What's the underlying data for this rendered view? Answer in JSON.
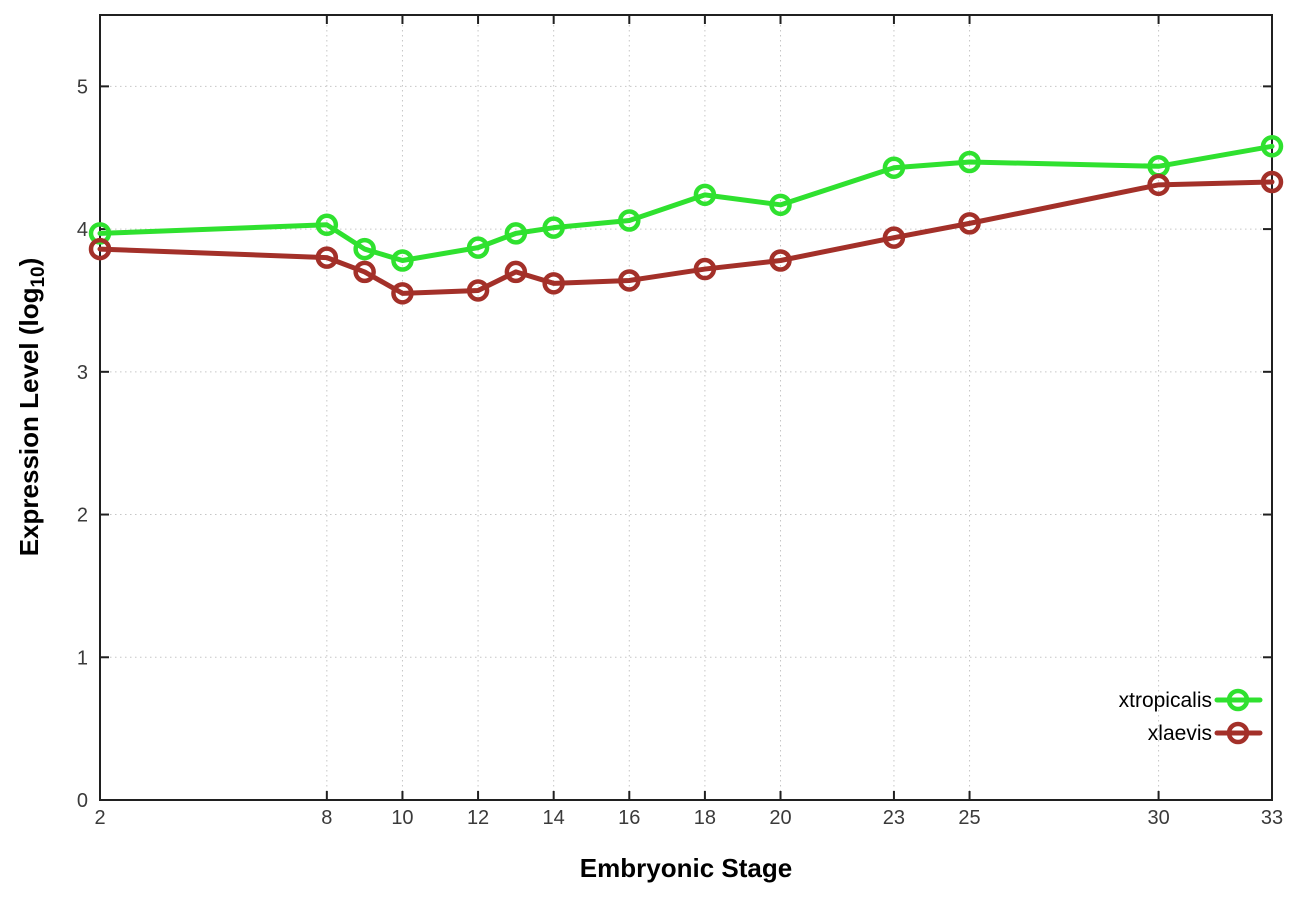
{
  "chart_data": {
    "type": "line",
    "title": "",
    "xlabel": "Embryonic Stage",
    "ylabel": "Expression Level (log10)",
    "ylabel_parts": {
      "pre": "Expression Level (log",
      "sub": "10",
      "post": ")"
    },
    "x": [
      2,
      8,
      9,
      10,
      12,
      13,
      14,
      16,
      18,
      20,
      23,
      25,
      30,
      33
    ],
    "series": [
      {
        "name": "xtropicalis",
        "color": "#2fe12f",
        "values": [
          3.97,
          4.03,
          3.86,
          3.78,
          3.87,
          3.97,
          4.01,
          4.06,
          4.24,
          4.17,
          4.43,
          4.47,
          4.44,
          4.58
        ]
      },
      {
        "name": "xlaevis",
        "color": "#a33029",
        "values": [
          3.86,
          3.8,
          3.7,
          3.55,
          3.57,
          3.7,
          3.62,
          3.64,
          3.72,
          3.78,
          3.94,
          4.04,
          4.31,
          4.33
        ]
      }
    ],
    "xlim": [
      2,
      33
    ],
    "ylim": [
      0,
      5.5
    ],
    "xticks": [
      2,
      8,
      10,
      12,
      14,
      16,
      18,
      20,
      23,
      25,
      30,
      33
    ],
    "yticks": [
      0,
      1,
      2,
      3,
      4,
      5
    ],
    "grid": true,
    "marker": "open-circle",
    "line_width": 5,
    "legend_position": "inside-bottom-right",
    "colors": {
      "border": "#202020",
      "grid": "#c6c6c6",
      "tick_label": "#3a3a3a",
      "axis_label": "#000000",
      "background": "#ffffff"
    }
  }
}
